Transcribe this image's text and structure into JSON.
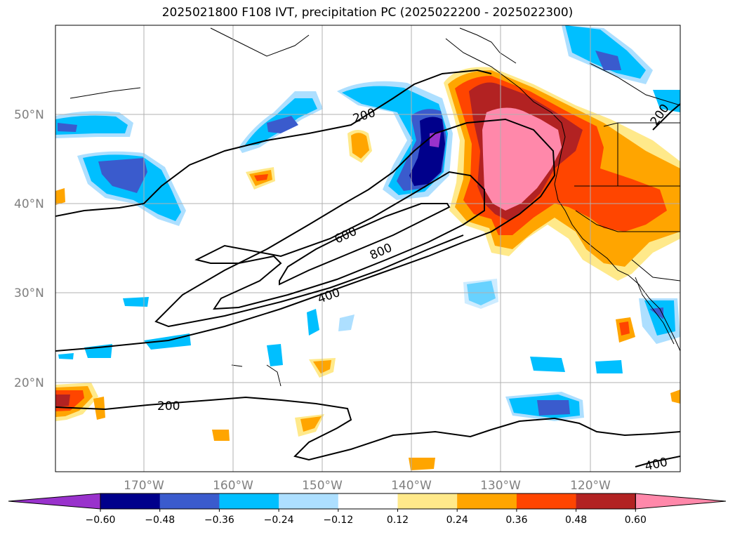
{
  "title": "2025021800 F108 IVT, precipitation PC (2025022200 - 2025022300)",
  "lat_labels": [
    "50°N",
    "40°N",
    "30°N",
    "20°N"
  ],
  "lon_labels": [
    "170°W",
    "160°W",
    "150°W",
    "140°W",
    "130°W",
    "120°W"
  ],
  "contour_labels": [
    "200",
    "600",
    "800",
    "400",
    "200",
    "400",
    "200"
  ],
  "colorbar": {
    "ticks": [
      "−0.60",
      "−0.48",
      "−0.36",
      "−0.24",
      "−0.12",
      "0.12",
      "0.24",
      "0.36",
      "0.48",
      "0.60"
    ],
    "colors": [
      "#9932cc",
      "#00008b",
      "#3a5bcd",
      "#00bfff",
      "#addfff",
      "#ffffff",
      "#ffe98a",
      "#ffa500",
      "#ff4500",
      "#b22222",
      "#ff88aa"
    ]
  },
  "colors": {
    "purple": "#9932cc",
    "navy": "#00008b",
    "royal": "#3a5bcd",
    "sky": "#00bfff",
    "lightblue": "#addfff",
    "yellow": "#ffe98a",
    "orange": "#ffa500",
    "redorange": "#ff4500",
    "firebrick": "#b22222",
    "pink": "#ff88aa"
  }
}
